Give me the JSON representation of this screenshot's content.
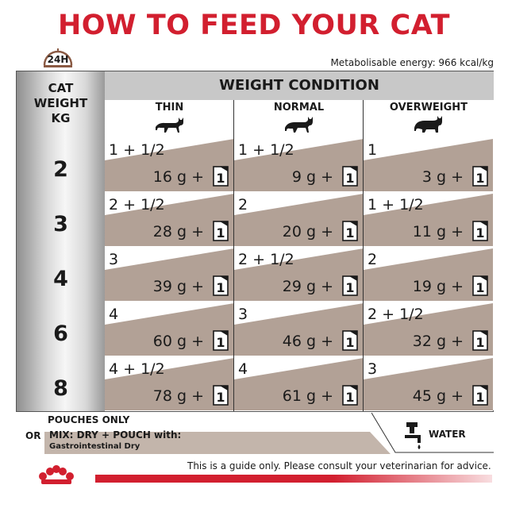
{
  "title": "HOW TO FEED YOUR CAT",
  "clock_label": "24H",
  "energy_text": "Metabolisable energy: 966 kcal/kg",
  "weight_header": [
    "CAT",
    "WEIGHT",
    "KG"
  ],
  "weight_condition_header": "WEIGHT CONDITION",
  "conditions": [
    {
      "label": "THIN"
    },
    {
      "label": "NORMAL"
    },
    {
      "label": "OVERWEIGHT"
    }
  ],
  "rows": [
    {
      "weight": "2",
      "cells": [
        {
          "pouches": "1 + 1/2",
          "dry": "16 g  +"
        },
        {
          "pouches": "1 + 1/2",
          "dry": "9 g  +"
        },
        {
          "pouches": "1",
          "dry": "3 g  +"
        }
      ]
    },
    {
      "weight": "3",
      "cells": [
        {
          "pouches": "2 + 1/2",
          "dry": "28 g  +"
        },
        {
          "pouches": "2",
          "dry": "20 g  +"
        },
        {
          "pouches": "1 + 1/2",
          "dry": "11 g  +"
        }
      ]
    },
    {
      "weight": "4",
      "cells": [
        {
          "pouches": "3",
          "dry": "39 g  +"
        },
        {
          "pouches": "2 + 1/2",
          "dry": "29 g  +"
        },
        {
          "pouches": "2",
          "dry": "19 g  +"
        }
      ]
    },
    {
      "weight": "6",
      "cells": [
        {
          "pouches": "4",
          "dry": "60 g  +"
        },
        {
          "pouches": "3",
          "dry": "46 g  +"
        },
        {
          "pouches": "2 + 1/2",
          "dry": "32 g  +"
        }
      ]
    },
    {
      "weight": "8",
      "cells": [
        {
          "pouches": "4 + 1/2",
          "dry": "78 g  +"
        },
        {
          "pouches": "4",
          "dry": "61 g  +"
        },
        {
          "pouches": "3",
          "dry": "45 g  +"
        }
      ]
    }
  ],
  "pouch_icon_number": "1",
  "legend": {
    "pouches_only": "POUCHES ONLY",
    "or": "OR",
    "mix": "MIX: DRY + POUCH with:",
    "product": "Gastrointestinal Dry",
    "water": "WATER"
  },
  "disclaimer": "This is a guide only. Please consult your veterinarian for advice.",
  "colors": {
    "title_red": "#d21f2f",
    "band_brown": "#b2a196",
    "header_grey": "#c8c8c8"
  },
  "icons": [
    "clock-icon",
    "cat-icon",
    "pouch-icon",
    "water-tap-icon",
    "crown-logo"
  ]
}
